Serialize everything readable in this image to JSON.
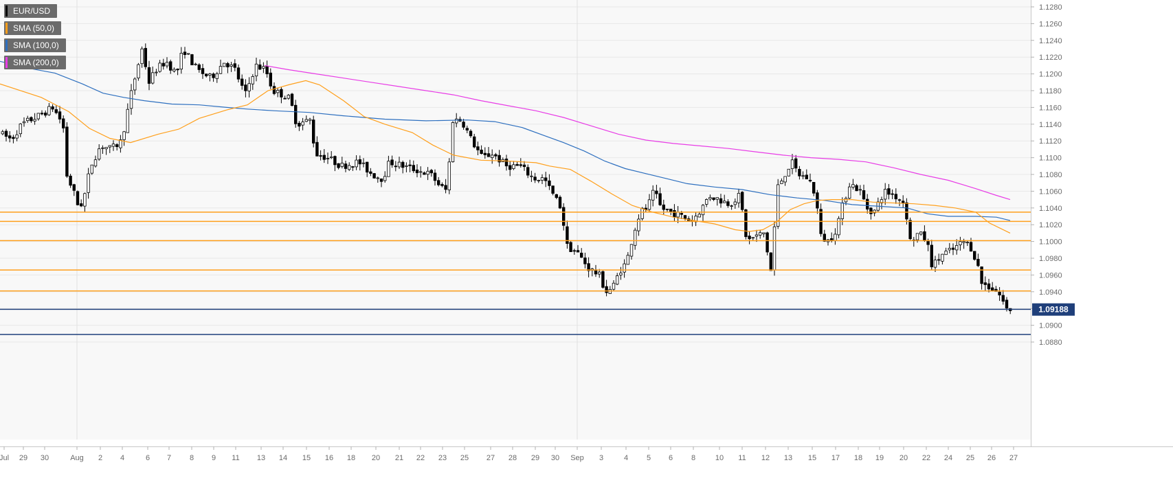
{
  "chart_data": {
    "type": "candlestick",
    "symbol": "EUR/USD",
    "legend": [
      {
        "label": "EUR/USD",
        "color": "#000000"
      },
      {
        "label": "SMA (50,0)",
        "color": "#ff9f1a"
      },
      {
        "label": "SMA (100,0)",
        "color": "#2d6fbf"
      },
      {
        "label": "SMA (200,0)",
        "color": "#e83ce6"
      }
    ],
    "ylim": [
      1.0875,
      1.1285
    ],
    "y_ticks": [
      "1.1280",
      "1.1260",
      "1.1240",
      "1.1220",
      "1.1200",
      "1.1180",
      "1.1160",
      "1.1140",
      "1.1120",
      "1.1100",
      "1.1080",
      "1.1060",
      "1.1040",
      "1.1020",
      "1.1000",
      "1.0980",
      "1.0960",
      "1.0940",
      "1.0920",
      "1.0900",
      "1.0880"
    ],
    "x_ticks": [
      "Jul",
      "29",
      "30",
      "Aug",
      "2",
      "4",
      "6",
      "7",
      "8",
      "9",
      "11",
      "13",
      "14",
      "15",
      "16",
      "18",
      "20",
      "21",
      "22",
      "23",
      "25",
      "27",
      "28",
      "29",
      "30",
      "Sep",
      "3",
      "4",
      "5",
      "6",
      "8",
      "10",
      "11",
      "12",
      "13",
      "15",
      "17",
      "18",
      "19",
      "20",
      "22",
      "24",
      "25",
      "26",
      "27"
    ],
    "current_price": "1.09188",
    "level_colors": {
      "resistance": "#ff9f1a",
      "support": "#1f3f7a"
    },
    "resistance_levels": [
      1.1035,
      1.1024,
      1.1001,
      1.0966,
      1.0941
    ],
    "support_levels": [
      1.0919,
      1.0889
    ],
    "sma50_points": [
      [
        0,
        1.1188
      ],
      [
        60,
        1.1172
      ],
      [
        100,
        1.1155
      ],
      [
        130,
        1.1135
      ],
      [
        160,
        1.1123
      ],
      [
        190,
        1.1118
      ],
      [
        230,
        1.1128
      ],
      [
        260,
        1.1134
      ],
      [
        290,
        1.1147
      ],
      [
        330,
        1.1157
      ],
      [
        360,
        1.1163
      ],
      [
        390,
        1.118
      ],
      [
        420,
        1.1187
      ],
      [
        445,
        1.1192
      ],
      [
        465,
        1.1187
      ],
      [
        500,
        1.1168
      ],
      [
        530,
        1.1149
      ],
      [
        560,
        1.114
      ],
      [
        600,
        1.113
      ],
      [
        630,
        1.1115
      ],
      [
        660,
        1.1103
      ],
      [
        700,
        1.1097
      ],
      [
        740,
        1.1096
      ],
      [
        780,
        1.1094
      ],
      [
        800,
        1.109
      ],
      [
        830,
        1.1086
      ],
      [
        860,
        1.1072
      ],
      [
        890,
        1.1057
      ],
      [
        920,
        1.1043
      ],
      [
        950,
        1.1035
      ],
      [
        980,
        1.1029
      ],
      [
        1010,
        1.1025
      ],
      [
        1040,
        1.1021
      ],
      [
        1070,
        1.1014
      ],
      [
        1090,
        1.1012
      ],
      [
        1110,
        1.1014
      ],
      [
        1130,
        1.1023
      ],
      [
        1150,
        1.1038
      ],
      [
        1170,
        1.1045
      ],
      [
        1190,
        1.1049
      ],
      [
        1210,
        1.105
      ],
      [
        1240,
        1.105
      ],
      [
        1270,
        1.1047
      ],
      [
        1300,
        1.1046
      ],
      [
        1330,
        1.1045
      ],
      [
        1360,
        1.1043
      ],
      [
        1390,
        1.104
      ],
      [
        1420,
        1.1035
      ],
      [
        1440,
        1.1022
      ],
      [
        1470,
        1.101
      ]
    ],
    "sma100_points": [
      [
        0,
        1.1215
      ],
      [
        40,
        1.1207
      ],
      [
        80,
        1.1201
      ],
      [
        120,
        1.1188
      ],
      [
        150,
        1.1177
      ],
      [
        180,
        1.1172
      ],
      [
        210,
        1.1168
      ],
      [
        250,
        1.1164
      ],
      [
        290,
        1.1163
      ],
      [
        330,
        1.116
      ],
      [
        360,
        1.1158
      ],
      [
        400,
        1.1156
      ],
      [
        450,
        1.1154
      ],
      [
        500,
        1.115
      ],
      [
        560,
        1.1146
      ],
      [
        620,
        1.1144
      ],
      [
        680,
        1.1145
      ],
      [
        720,
        1.1143
      ],
      [
        760,
        1.1136
      ],
      [
        790,
        1.1127
      ],
      [
        820,
        1.1118
      ],
      [
        850,
        1.1108
      ],
      [
        880,
        1.1096
      ],
      [
        910,
        1.1087
      ],
      [
        940,
        1.1081
      ],
      [
        970,
        1.1075
      ],
      [
        1000,
        1.1069
      ],
      [
        1040,
        1.1065
      ],
      [
        1080,
        1.1062
      ],
      [
        1120,
        1.1056
      ],
      [
        1160,
        1.1052
      ],
      [
        1200,
        1.1049
      ],
      [
        1240,
        1.1044
      ],
      [
        1280,
        1.1042
      ],
      [
        1320,
        1.104
      ],
      [
        1350,
        1.1033
      ],
      [
        1380,
        1.103
      ],
      [
        1420,
        1.103
      ],
      [
        1450,
        1.1029
      ],
      [
        1470,
        1.1025
      ]
    ],
    "sma200_points": [
      [
        385,
        1.121
      ],
      [
        420,
        1.1205
      ],
      [
        460,
        1.12
      ],
      [
        500,
        1.1195
      ],
      [
        540,
        1.119
      ],
      [
        580,
        1.1185
      ],
      [
        620,
        1.118
      ],
      [
        660,
        1.1175
      ],
      [
        700,
        1.1168
      ],
      [
        740,
        1.1162
      ],
      [
        780,
        1.1156
      ],
      [
        820,
        1.1148
      ],
      [
        860,
        1.1138
      ],
      [
        900,
        1.1128
      ],
      [
        940,
        1.1121
      ],
      [
        980,
        1.1117
      ],
      [
        1020,
        1.1114
      ],
      [
        1060,
        1.1111
      ],
      [
        1100,
        1.1107
      ],
      [
        1140,
        1.1103
      ],
      [
        1180,
        1.11
      ],
      [
        1220,
        1.1098
      ],
      [
        1260,
        1.1095
      ],
      [
        1300,
        1.1088
      ],
      [
        1340,
        1.108
      ],
      [
        1380,
        1.1073
      ],
      [
        1420,
        1.1063
      ],
      [
        1450,
        1.1055
      ],
      [
        1470,
        1.105
      ]
    ],
    "candle_anchors": [
      [
        0,
        1.113
      ],
      [
        20,
        1.1122
      ],
      [
        35,
        1.114
      ],
      [
        60,
        1.115
      ],
      [
        80,
        1.116
      ],
      [
        95,
        1.114
      ],
      [
        100,
        1.108
      ],
      [
        110,
        1.106
      ],
      [
        118,
        1.104
      ],
      [
        125,
        1.105
      ],
      [
        135,
        1.109
      ],
      [
        150,
        1.1115
      ],
      [
        165,
        1.111
      ],
      [
        180,
        1.112
      ],
      [
        195,
        1.118
      ],
      [
        210,
        1.123
      ],
      [
        220,
        1.119
      ],
      [
        230,
        1.1205
      ],
      [
        245,
        1.1215
      ],
      [
        260,
        1.12
      ],
      [
        270,
        1.123
      ],
      [
        290,
        1.1205
      ],
      [
        310,
        1.1195
      ],
      [
        330,
        1.1215
      ],
      [
        345,
        1.1205
      ],
      [
        360,
        1.1175
      ],
      [
        375,
        1.121
      ],
      [
        390,
        1.1205
      ],
      [
        400,
        1.118
      ],
      [
        415,
        1.1175
      ],
      [
        425,
        1.117
      ],
      [
        435,
        1.114
      ],
      [
        455,
        1.1145
      ],
      [
        462,
        1.1105
      ],
      [
        480,
        1.11
      ],
      [
        500,
        1.109
      ],
      [
        525,
        1.1095
      ],
      [
        545,
        1.108
      ],
      [
        560,
        1.1075
      ],
      [
        570,
        1.1095
      ],
      [
        590,
        1.109
      ],
      [
        610,
        1.1085
      ],
      [
        630,
        1.108
      ],
      [
        645,
        1.1065
      ],
      [
        655,
        1.106
      ],
      [
        660,
        1.1145
      ],
      [
        675,
        1.1145
      ],
      [
        690,
        1.112
      ],
      [
        705,
        1.11
      ],
      [
        720,
        1.1105
      ],
      [
        740,
        1.109
      ],
      [
        760,
        1.109
      ],
      [
        780,
        1.1075
      ],
      [
        795,
        1.1075
      ],
      [
        805,
        1.106
      ],
      [
        820,
        1.104
      ],
      [
        828,
        1.0995
      ],
      [
        845,
        1.0985
      ],
      [
        860,
        1.0968
      ],
      [
        875,
        1.096
      ],
      [
        885,
        1.094
      ],
      [
        895,
        1.0945
      ],
      [
        905,
        1.0965
      ],
      [
        915,
        1.0975
      ],
      [
        925,
        1.101
      ],
      [
        935,
        1.1035
      ],
      [
        945,
        1.104
      ],
      [
        955,
        1.106
      ],
      [
        965,
        1.104
      ],
      [
        980,
        1.1035
      ],
      [
        995,
        1.103
      ],
      [
        1010,
        1.1025
      ],
      [
        1025,
        1.104
      ],
      [
        1035,
        1.1055
      ],
      [
        1050,
        1.105
      ],
      [
        1065,
        1.1045
      ],
      [
        1080,
        1.1055
      ],
      [
        1090,
        1.1
      ],
      [
        1100,
        1.1005
      ],
      [
        1115,
        1.101
      ],
      [
        1125,
        1.0965
      ],
      [
        1135,
        1.1065
      ],
      [
        1145,
        1.108
      ],
      [
        1155,
        1.1095
      ],
      [
        1165,
        1.108
      ],
      [
        1180,
        1.1075
      ],
      [
        1190,
        1.1055
      ],
      [
        1198,
        1.1005
      ],
      [
        1210,
        1.1
      ],
      [
        1220,
        1.1015
      ],
      [
        1230,
        1.1045
      ],
      [
        1240,
        1.107
      ],
      [
        1255,
        1.106
      ],
      [
        1265,
        1.104
      ],
      [
        1275,
        1.1035
      ],
      [
        1290,
        1.106
      ],
      [
        1305,
        1.1055
      ],
      [
        1320,
        1.1045
      ],
      [
        1328,
        1.1
      ],
      [
        1340,
        1.101
      ],
      [
        1352,
        1.1
      ],
      [
        1360,
        1.097
      ],
      [
        1375,
        1.0985
      ],
      [
        1390,
        1.099
      ],
      [
        1405,
        1.1
      ],
      [
        1415,
        1.0995
      ],
      [
        1425,
        1.0975
      ],
      [
        1432,
        1.095
      ],
      [
        1445,
        1.0945
      ],
      [
        1455,
        1.094
      ],
      [
        1462,
        1.093
      ],
      [
        1468,
        1.0919
      ]
    ]
  }
}
